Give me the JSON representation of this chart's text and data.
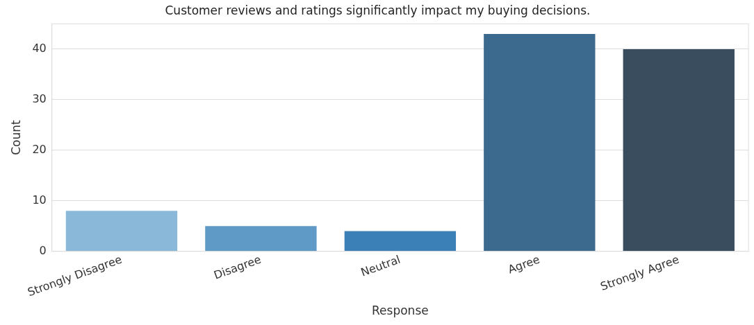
{
  "chart_data": {
    "type": "bar",
    "title": "Customer reviews and ratings significantly impact my buying decisions.",
    "xlabel": "Response",
    "ylabel": "Count",
    "categories": [
      "Strongly Disagree",
      "Disagree",
      "Neutral",
      "Agree",
      "Strongly Agree"
    ],
    "values": [
      8,
      5,
      4,
      43,
      40
    ],
    "colors": [
      "#8ab8d9",
      "#5f9ac6",
      "#3b81b8",
      "#3c6a8e",
      "#3a4d5e"
    ],
    "ylim": [
      0,
      45
    ],
    "yticks": [
      0,
      10,
      20,
      30,
      40
    ],
    "grid": "y",
    "legend": false
  }
}
